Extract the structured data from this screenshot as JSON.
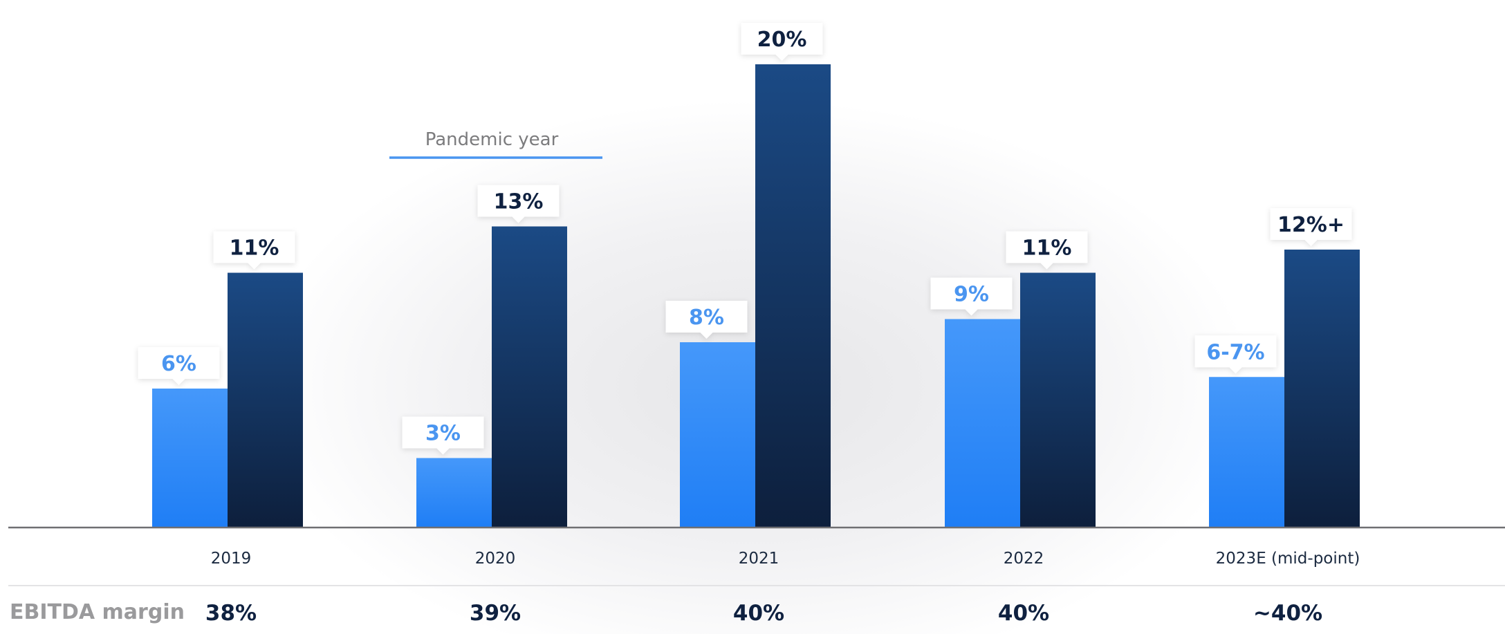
{
  "chart_data": {
    "type": "bar",
    "categories": [
      "2019",
      "2020",
      "2021",
      "2022",
      "2023E (mid-point)"
    ],
    "series": [
      {
        "values": [
          6,
          3,
          8,
          9,
          6.5
        ],
        "labels": [
          "6%",
          "3%",
          "8%",
          "9%",
          "6-7%"
        ],
        "color": "#3d8ff0"
      },
      {
        "values": [
          11,
          13,
          20,
          11,
          12
        ],
        "labels": [
          "11%",
          "13%",
          "20%",
          "11%",
          "12%+"
        ],
        "color": "#123563"
      }
    ],
    "annotation": {
      "text": "Pandemic year",
      "category": "2020"
    },
    "ylim": [
      0,
      20
    ],
    "grid": false,
    "legend": "none"
  },
  "ebitda_margin": {
    "label": "EBITDA margin",
    "values": [
      "38%",
      "39%",
      "40%",
      "40%",
      "~40%"
    ]
  },
  "colors": {
    "light_bar_top": "#4598fa",
    "light_bar_bottom": "#1f7ef5",
    "dark_bar_top": "#1b4a85",
    "dark_bar_bottom": "#0d1f3c",
    "light_label": "#4a95f0",
    "dark_label": "#0f2140",
    "annotation_line": "#4a95f0"
  }
}
